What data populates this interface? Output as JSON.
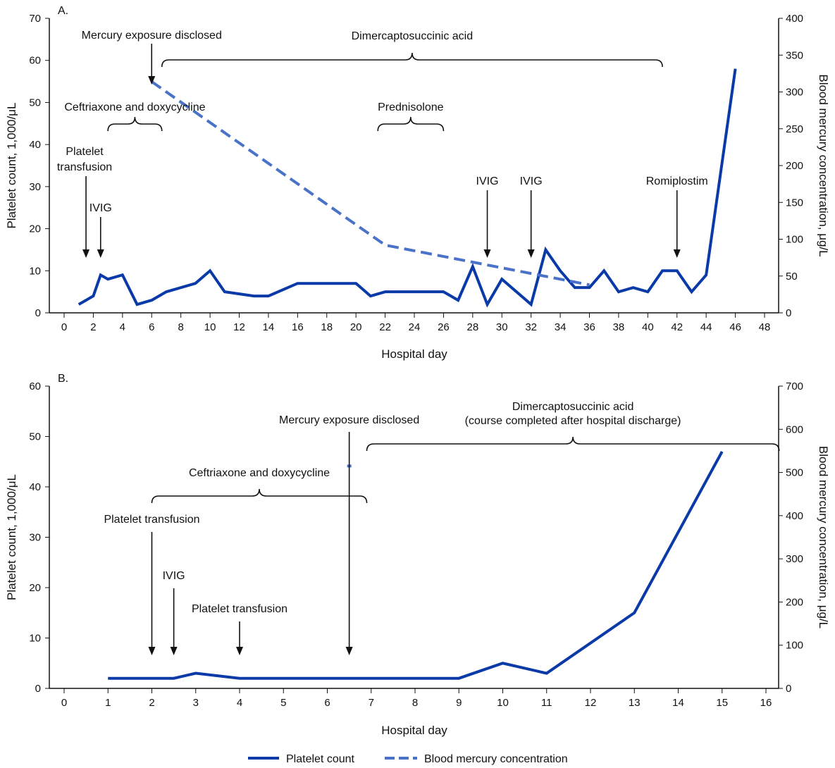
{
  "chart_data": [
    {
      "panel_label": "A.",
      "type": "line",
      "xlabel": "Hospital day",
      "ylabel": "Platelet count, 1,000/μL",
      "y2label": "Blood mercury concentration, μg/L",
      "xlim": [
        0,
        48
      ],
      "ylim": [
        0,
        70
      ],
      "y2lim": [
        0,
        400
      ],
      "xticks": [
        0,
        2,
        4,
        6,
        8,
        10,
        12,
        14,
        16,
        18,
        20,
        22,
        24,
        26,
        28,
        30,
        32,
        34,
        36,
        38,
        40,
        42,
        44,
        46,
        48
      ],
      "yticks": [
        0,
        10,
        20,
        30,
        40,
        50,
        60,
        70
      ],
      "y2ticks": [
        0,
        50,
        100,
        150,
        200,
        250,
        300,
        350,
        400
      ],
      "series": [
        {
          "name": "Platelet count",
          "axis": "left",
          "style": "solid",
          "color": "#0a3aa8",
          "x": [
            1,
            2,
            2.5,
            3,
            4,
            5,
            6,
            7,
            9,
            10,
            11,
            13,
            14,
            16,
            20,
            21,
            22,
            26,
            27,
            28,
            29,
            30,
            32,
            33,
            34,
            35,
            36,
            37,
            38,
            39,
            40,
            41,
            42,
            43,
            44,
            46
          ],
          "y": [
            2,
            4,
            9,
            8,
            9,
            2,
            3,
            5,
            7,
            10,
            5,
            4,
            4,
            7,
            7,
            4,
            5,
            5,
            3,
            11,
            2,
            8,
            2,
            15,
            10,
            6,
            6,
            10,
            5,
            6,
            5,
            10,
            10,
            5,
            9,
            58
          ]
        },
        {
          "name": "Blood mercury concentration",
          "axis": "right",
          "style": "dashed",
          "color": "#4a72c8",
          "x": [
            6,
            22,
            36
          ],
          "y": [
            314,
            92,
            38
          ]
        }
      ],
      "arrows": [
        {
          "label": "Platelet transfusion",
          "x": 1.5
        },
        {
          "label": "IVIG",
          "x": 2.5
        },
        {
          "label": "Mercury exposure disclosed",
          "x": 6
        },
        {
          "label": "IVIG",
          "x": 29
        },
        {
          "label": "IVIG",
          "x": 32
        },
        {
          "label": "Romiplostim",
          "x": 42
        }
      ],
      "braces": [
        {
          "label": "Ceftriaxone and doxycycline",
          "from": 3,
          "to": 6.7
        },
        {
          "label": "Dimercaptosuccinic acid",
          "from": 6.7,
          "to": 41
        },
        {
          "label": "Prednisolone",
          "from": 21.5,
          "to": 26
        }
      ]
    },
    {
      "panel_label": "B.",
      "type": "line",
      "xlabel": "Hospital day",
      "ylabel": "Platelet count, 1,000/μL",
      "y2label": "Blood mercury concentration, μg/L",
      "xlim": [
        0,
        16
      ],
      "ylim": [
        0,
        60
      ],
      "y2lim": [
        0,
        700
      ],
      "xticks": [
        0,
        1,
        2,
        3,
        4,
        5,
        6,
        7,
        8,
        9,
        10,
        11,
        12,
        13,
        14,
        15,
        16
      ],
      "yticks": [
        0,
        10,
        20,
        30,
        40,
        50,
        60
      ],
      "y2ticks": [
        0,
        100,
        200,
        300,
        400,
        500,
        600,
        700
      ],
      "series": [
        {
          "name": "Platelet count",
          "axis": "left",
          "style": "solid",
          "color": "#0a3aa8",
          "x": [
            1,
            2,
            2.5,
            3,
            4,
            9,
            10,
            11,
            13,
            15
          ],
          "y": [
            2,
            2,
            2,
            3,
            2,
            2,
            5,
            3,
            15,
            47
          ]
        },
        {
          "name": "Blood mercury concentration",
          "axis": "right",
          "style": "dashed",
          "color": "#4a72c8",
          "x": [
            6.5
          ],
          "y": [
            515
          ]
        }
      ],
      "arrows": [
        {
          "label": "Platelet transfusion",
          "x": 2
        },
        {
          "label": "IVIG",
          "x": 2.5
        },
        {
          "label": "Platelet transfusion",
          "x": 4
        },
        {
          "label": "Mercury exposure disclosed",
          "x": 6.5
        }
      ],
      "braces": [
        {
          "label": "Ceftriaxone and doxycycline",
          "from": 2,
          "to": 6.9
        },
        {
          "label": "Dimercaptosuccinic acid",
          "label2": "(course completed after hospital discharge)",
          "from": 6.9,
          "to": 16.3
        }
      ]
    }
  ],
  "legend": {
    "placement": "bottom",
    "items": [
      {
        "label": "Platelet count",
        "style": "solid",
        "color": "#0a3aa8"
      },
      {
        "label": "Blood mercury concentration",
        "style": "dashed",
        "color": "#4a72c8"
      }
    ]
  }
}
